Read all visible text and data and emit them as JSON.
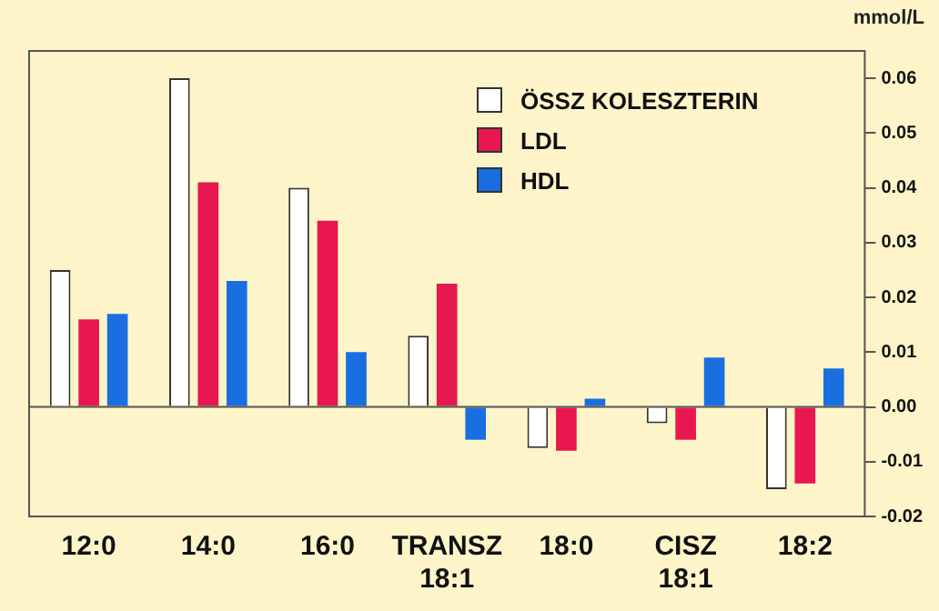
{
  "chart_data": {
    "type": "bar",
    "ylabel": "mmol/L",
    "categories": [
      "12:0",
      "14:0",
      "16:0",
      "TRANSZ 18:1",
      "18:0",
      "CISZ 18:1",
      "18:2"
    ],
    "series": [
      {
        "name": "ÖSSZ KOLESZTERIN",
        "color": "#ffffff",
        "values": [
          0.025,
          0.06,
          0.04,
          0.013,
          -0.0075,
          -0.003,
          -0.015
        ]
      },
      {
        "name": "LDL",
        "color": "#e8174f",
        "values": [
          0.016,
          0.041,
          0.034,
          0.0225,
          -0.008,
          -0.006,
          -0.014
        ]
      },
      {
        "name": "HDL",
        "color": "#1a6fe0",
        "values": [
          0.017,
          0.023,
          0.01,
          -0.006,
          0.0015,
          0.009,
          0.007
        ]
      }
    ],
    "ylim": [
      -0.02,
      0.065
    ],
    "yticks": [
      {
        "value": -0.02,
        "label": "-0.02"
      },
      {
        "value": -0.01,
        "label": "-0.01"
      },
      {
        "value": 0,
        "label": "0.00"
      },
      {
        "value": 0.01,
        "label": "0.01"
      },
      {
        "value": 0.02,
        "label": "0.02"
      },
      {
        "value": 0.03,
        "label": "0.03"
      },
      {
        "value": 0.04,
        "label": "0.04"
      },
      {
        "value": 0.05,
        "label": "0.05"
      },
      {
        "value": 0.06,
        "label": "0.06"
      }
    ],
    "grid": false,
    "ref_lines": [
      {
        "axis": "y",
        "value": 0,
        "color": "#555555"
      }
    ],
    "legend": "top right"
  }
}
